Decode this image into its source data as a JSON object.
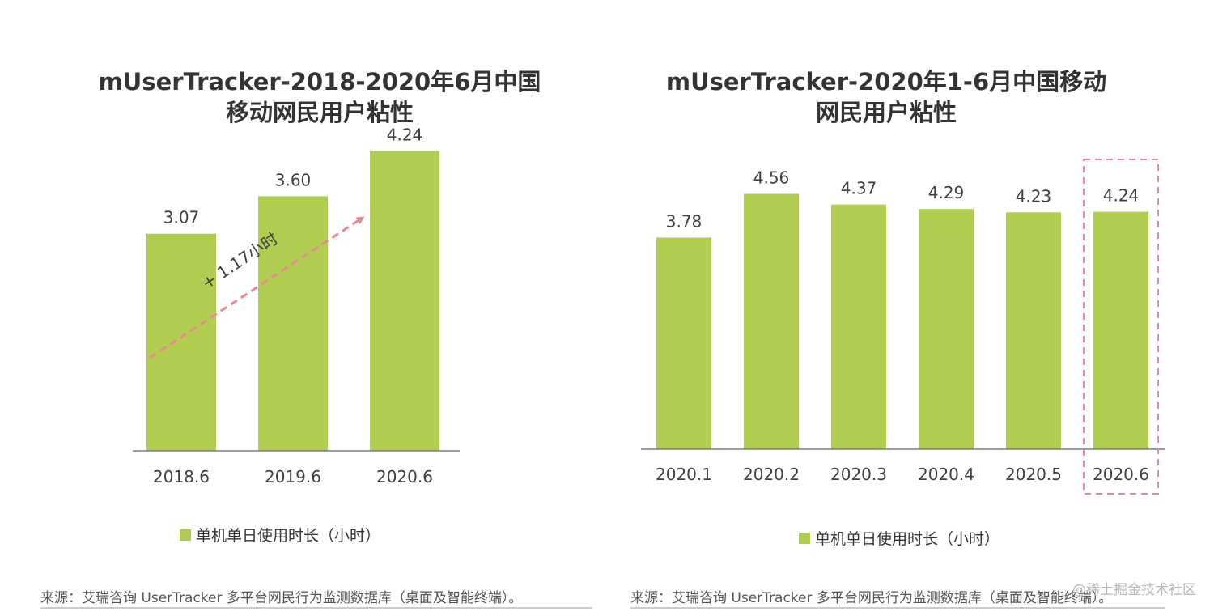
{
  "chart_data": [
    {
      "type": "bar",
      "title": [
        "mUserTracker-2018-2020年6月中国",
        "移动网民用户粘性"
      ],
      "categories": [
        "2018.6",
        "2019.6",
        "2020.6"
      ],
      "series": [
        {
          "name": "单机单日使用时长（小时）",
          "values": [
            3.07,
            3.6,
            4.24
          ]
        }
      ],
      "value_labels": [
        "3.07",
        "3.60",
        "4.24"
      ],
      "ylim": [
        0,
        5
      ],
      "annotation": "+ 1.17小时",
      "source": "来源：艾瑞咨询 UserTracker 多平台网民行为监测数据库（桌面及智能终端）。",
      "color": "#b0cd50",
      "arrow_color": "#e58a8f"
    },
    {
      "type": "bar",
      "title": [
        "mUserTracker-2020年1-6月中国移动",
        "网民用户粘性"
      ],
      "categories": [
        "2020.1",
        "2020.2",
        "2020.3",
        "2020.4",
        "2020.5",
        "2020.6"
      ],
      "series": [
        {
          "name": "单机单日使用时长（小时）",
          "values": [
            3.78,
            4.56,
            4.37,
            4.29,
            4.23,
            4.24
          ]
        }
      ],
      "value_labels": [
        "3.78",
        "4.56",
        "4.37",
        "4.29",
        "4.23",
        "4.24"
      ],
      "ylim": [
        0,
        5
      ],
      "highlight_category": "2020.6",
      "source": "来源：艾瑞咨询 UserTracker 多平台网民行为监测数据库（桌面及智能终端）。",
      "color": "#b0cd50",
      "highlight_color": "#e58a8f"
    }
  ],
  "watermark": "@稀土掘金技术社区"
}
